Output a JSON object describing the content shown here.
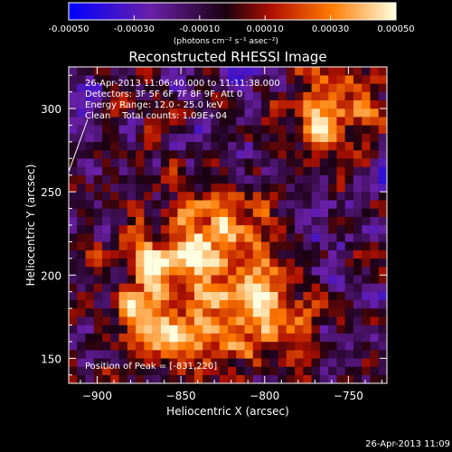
{
  "chart_data": {
    "type": "heatmap",
    "title": "Reconstructed RHESSI Image",
    "xlabel": "Heliocentric X (arcsec)",
    "ylabel": "Heliocentric Y (arcsec)",
    "xlim": [
      -917,
      -727
    ],
    "ylim": [
      135,
      325
    ],
    "x_ticks": [
      -900,
      -850,
      -800,
      -750
    ],
    "y_ticks": [
      150,
      200,
      250,
      300
    ],
    "colorbar": {
      "range": [
        -0.0005,
        0.0005
      ],
      "ticks": [
        "-0.00050",
        "-0.00030",
        "-0.00010",
        "0.00010",
        "0.00030",
        "0.00050"
      ],
      "unit_label": "(photons cm⁻² s⁻¹ asec⁻²)",
      "colors": [
        "#0000ff",
        "#6a20a8",
        "#1a0010",
        "#b01000",
        "#ff7a00",
        "#ffffe0"
      ]
    },
    "annotations": [
      "26-Apr-2013 11:06:40.000 to 11:11:38.000",
      "Detectors: 3F 5F 6F 7F 8F 9F, Att 0",
      "Energy Range: 12.0 - 25.0 keV",
      "Clean    Total counts: 1.09E+04"
    ],
    "peak_label": "Position of Peak = [-831,220]",
    "peak": [
      -831,
      220
    ],
    "sources": [
      {
        "x": -830,
        "y": 220,
        "intensity": 0.0005
      },
      {
        "x": -800,
        "y": 175,
        "intensity": 0.00046
      },
      {
        "x": -762,
        "y": 298,
        "intensity": 0.0004
      },
      {
        "x": -880,
        "y": 200,
        "intensity": 0.00028
      },
      {
        "x": -855,
        "y": 160,
        "intensity": 0.0003
      }
    ]
  },
  "footer_timestamp": "26-Apr-2013 11:09"
}
